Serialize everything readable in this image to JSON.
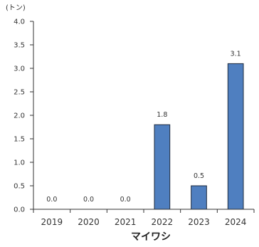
{
  "chart_data": {
    "type": "bar",
    "title": "",
    "unit_label": "(トン)",
    "xlabel": "マイワシ",
    "ylabel": "",
    "categories": [
      "2019",
      "2020",
      "2021",
      "2022",
      "2023",
      "2024"
    ],
    "values": [
      0.0,
      0.0,
      0.0,
      1.8,
      0.5,
      3.1
    ],
    "data_labels": [
      "0.0",
      "0.0",
      "0.0",
      "1.8",
      "0.5",
      "3.1"
    ],
    "ylim": [
      0,
      4.0
    ],
    "yticks": [
      "0.0",
      "0.5",
      "1.0",
      "1.5",
      "2.0",
      "2.5",
      "3.0",
      "3.5",
      "4.0"
    ],
    "grid": false,
    "legend": "none",
    "colors": {
      "bar": "#4f7fc0",
      "bar_edge": "#1e2a3c",
      "axis": "#333333"
    }
  }
}
